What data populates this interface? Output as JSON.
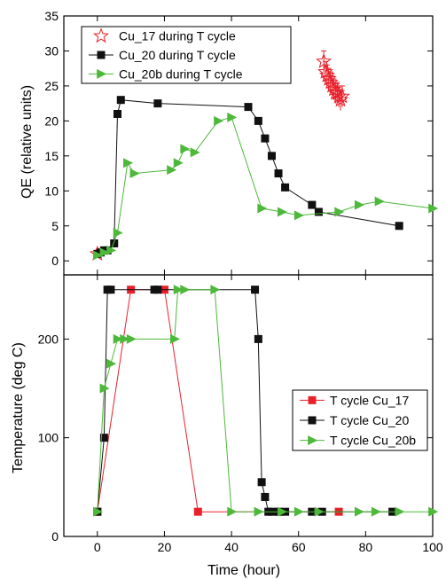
{
  "colors": {
    "red": "#e8202a",
    "black": "#111111",
    "green": "#4db83a"
  },
  "chart_data": [
    {
      "type": "scatter",
      "panel": "top",
      "ylabel": "QE (relative units)",
      "xlim": [
        -10,
        100
      ],
      "ylim": [
        -2,
        35
      ],
      "yticks": [
        0,
        5,
        10,
        15,
        20,
        25,
        30,
        35
      ],
      "grid": false,
      "legend_position": "top-left",
      "series": [
        {
          "name": "Cu_17 during T cycle",
          "marker": "star-open",
          "line": false,
          "color": "red",
          "x": [
            0,
            67.5,
            68,
            68.5,
            69,
            69.5,
            70,
            70.5,
            71,
            71.5,
            72,
            72.5,
            73
          ],
          "y": [
            1,
            28.5,
            27,
            26.5,
            26,
            25.5,
            25,
            24.5,
            24,
            24,
            23.5,
            23,
            23.5
          ],
          "yerr": [
            0,
            1.5,
            1.5,
            1.5,
            1.5,
            1.5,
            1.5,
            1.5,
            1.5,
            1.5,
            1.5,
            1.5,
            1.5
          ]
        },
        {
          "name": "Cu_20 during T cycle",
          "marker": "square",
          "line": true,
          "color": "black",
          "x": [
            0,
            1,
            2,
            3,
            5,
            6,
            7,
            18,
            45,
            48,
            50,
            52,
            54,
            56,
            64,
            66,
            90
          ],
          "y": [
            1,
            1.2,
            1.5,
            1.5,
            2.5,
            21,
            23,
            22.5,
            22,
            20,
            17.5,
            15,
            12.5,
            10.5,
            8,
            7,
            5
          ]
        },
        {
          "name": "Cu_20b during T cycle",
          "marker": "triangle-right",
          "line": true,
          "color": "green",
          "x": [
            0,
            2,
            4,
            6,
            9,
            11,
            22,
            24,
            26,
            29,
            36,
            40,
            49,
            55,
            60,
            72,
            78,
            84,
            100
          ],
          "y": [
            0.8,
            1.2,
            1.5,
            4,
            14,
            12.5,
            13,
            14,
            16,
            15.5,
            20,
            20.5,
            7.5,
            7,
            6.5,
            7,
            8,
            8.5,
            7.5
          ]
        }
      ]
    },
    {
      "type": "line",
      "panel": "bottom",
      "xlabel": "Time (hour)",
      "ylabel": "Temperature (deg C)",
      "xlim": [
        -10,
        100
      ],
      "ylim": [
        0,
        265
      ],
      "xticks": [
        0,
        20,
        40,
        60,
        80,
        100
      ],
      "yticks": [
        0,
        100,
        200
      ],
      "grid": false,
      "legend_position": "bottom-right",
      "series": [
        {
          "name": "T cycle Cu_17",
          "marker": "square",
          "color": "red",
          "x": [
            0,
            10,
            20,
            30,
            72
          ],
          "y": [
            25,
            250,
            250,
            25,
            25
          ]
        },
        {
          "name": "T cycle Cu_20",
          "marker": "square",
          "color": "black",
          "x": [
            0,
            2,
            3,
            4,
            17,
            18,
            47,
            48,
            49,
            50,
            51,
            52,
            54,
            56,
            64,
            67,
            88
          ],
          "y": [
            25,
            100,
            250,
            250,
            250,
            250,
            250,
            200,
            55,
            40,
            25,
            25,
            25,
            25,
            25,
            25,
            25
          ]
        },
        {
          "name": "T cycle Cu_20b",
          "marker": "triangle-right",
          "color": "green",
          "x": [
            0,
            2,
            4,
            6,
            8,
            10,
            23,
            24,
            26,
            35,
            40,
            48,
            55,
            60,
            66,
            78,
            83,
            90,
            100
          ],
          "y": [
            25,
            150,
            175,
            200,
            200,
            200,
            200,
            250,
            250,
            250,
            25,
            25,
            25,
            25,
            25,
            25,
            25,
            25,
            25
          ]
        }
      ]
    }
  ]
}
